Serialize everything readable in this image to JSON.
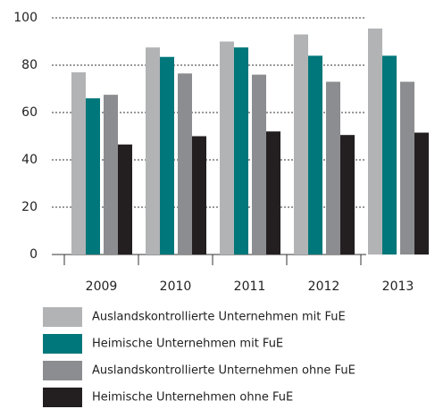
{
  "chart_data": {
    "type": "bar",
    "categories": [
      "2009",
      "2010",
      "2011",
      "2012",
      "2013"
    ],
    "series": [
      {
        "name": "Auslandskontrollierte Unternehmen mit FuE",
        "color": "#b2b3b5",
        "values": [
          77,
          87.5,
          90,
          93,
          95.5
        ]
      },
      {
        "name": "Heimische Unternehmen mit FuE",
        "color": "#00777a",
        "values": [
          66,
          83.5,
          87.5,
          84,
          84
        ]
      },
      {
        "name": "Auslandskontrollierte Unternehmen ohne FuE",
        "color": "#8c8d90",
        "values": [
          67.5,
          76.5,
          76,
          73,
          73
        ]
      },
      {
        "name": "Heimische Unternehmen ohne FuE",
        "color": "#231f20",
        "values": [
          46.5,
          50,
          52,
          50.5,
          51.5
        ]
      }
    ],
    "ylim": [
      0,
      100
    ],
    "yticks": [
      0,
      20,
      40,
      60,
      80,
      100
    ],
    "grid": true,
    "legend": "bottom"
  }
}
